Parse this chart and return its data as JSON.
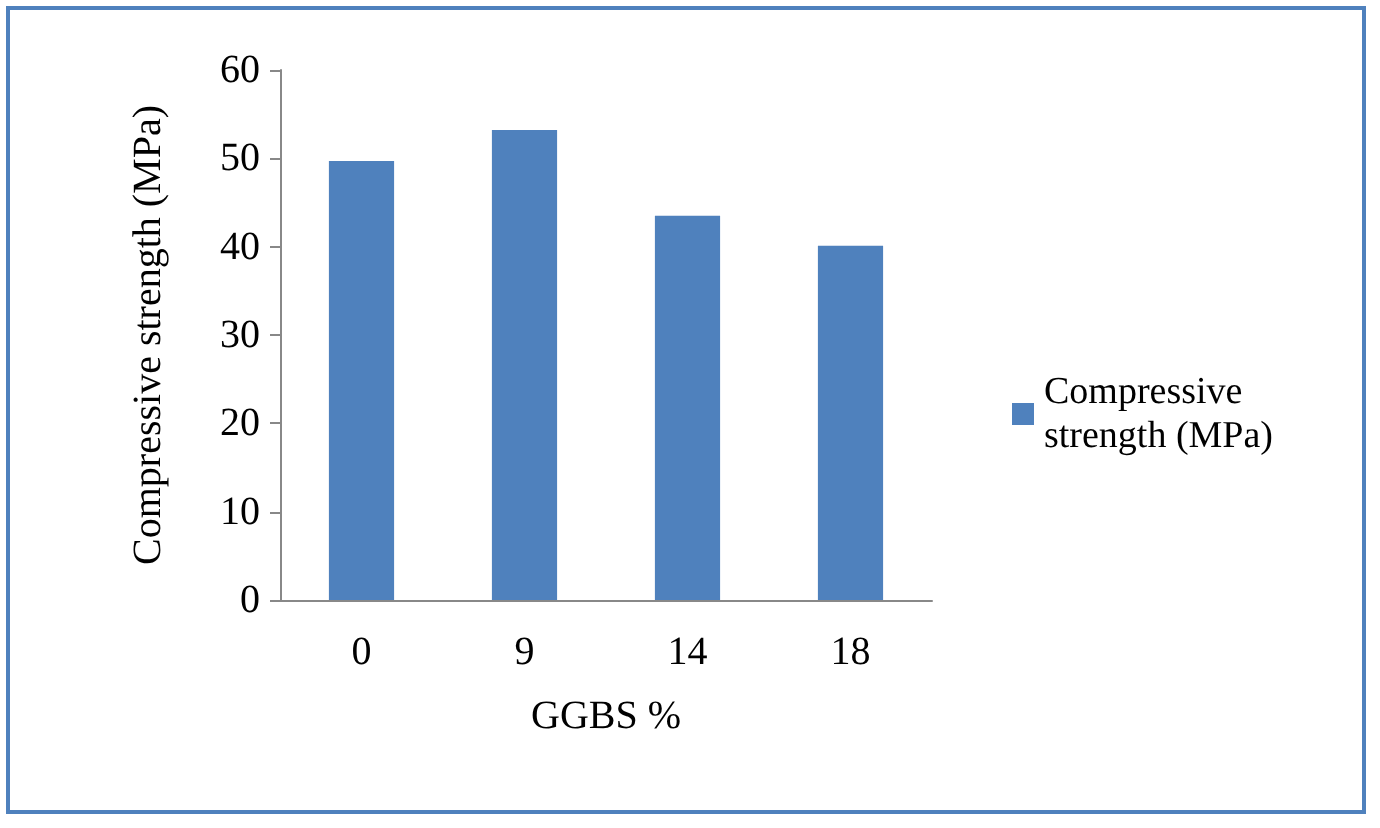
{
  "chart_data": {
    "type": "bar",
    "xlabel": "GGBS %",
    "ylabel": "Compressive strength (MPa)",
    "categories": [
      "0",
      "9",
      "14",
      "18"
    ],
    "series": [
      {
        "name": "Compressive strength (MPa)",
        "color": "#4f81bd",
        "values": [
          49.7,
          53.2,
          43.5,
          40.1
        ]
      }
    ],
    "ylim": [
      0,
      60
    ],
    "yticks": [
      0,
      10,
      20,
      30,
      40,
      50,
      60
    ],
    "grid": false,
    "legend": "right"
  }
}
